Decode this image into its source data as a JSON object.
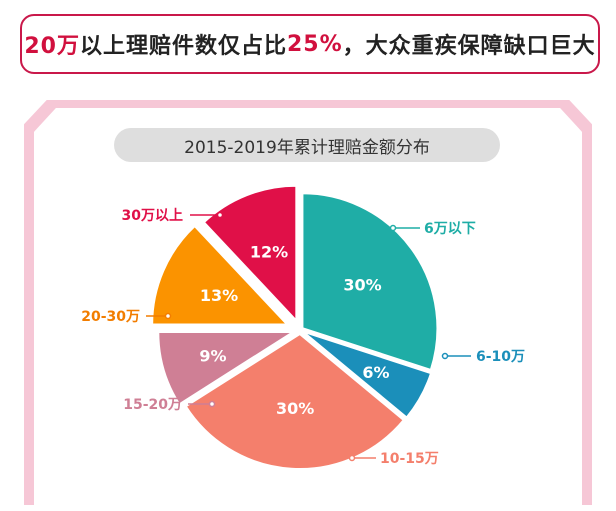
{
  "headline": {
    "part1": "20万",
    "part2": "以上理赔件数仅占比",
    "part3": "25%",
    "part4": "，大众重疾保障缺口巨大"
  },
  "chart_data": {
    "type": "pie",
    "title": "2015-2019年累计理赔金额分布",
    "slices": [
      {
        "label": "6万以下",
        "value": 30,
        "value_label": "30%",
        "color": "#1fada6",
        "label_color": "#1fada6"
      },
      {
        "label": "6-10万",
        "value": 6,
        "value_label": "6%",
        "color": "#1b8fba",
        "label_color": "#1b8fba"
      },
      {
        "label": "10-15万",
        "value": 30,
        "value_label": "30%",
        "color": "#f47f6c",
        "label_color": "#f47f6c"
      },
      {
        "label": "15-20万",
        "value": 9,
        "value_label": "9%",
        "color": "#cf7f95",
        "label_color": "#cf7f95"
      },
      {
        "label": "20-30万",
        "value": 13,
        "value_label": "13%",
        "color": "#fb9300",
        "label_color": "#f27d00"
      },
      {
        "label": "30万以上",
        "value": 12,
        "value_label": "12%",
        "color": "#e01048",
        "label_color": "#e01048"
      }
    ]
  }
}
